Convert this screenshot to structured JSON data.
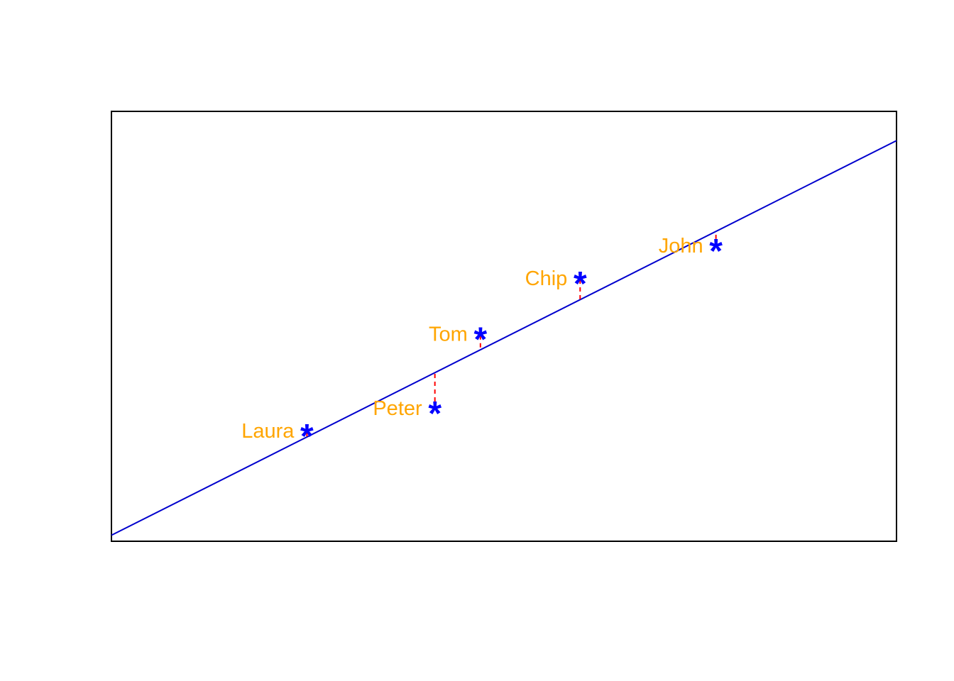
{
  "chart_data": {
    "type": "scatter",
    "title": "",
    "xlabel": "",
    "ylabel": "",
    "axes_shown": false,
    "grid": false,
    "legend": "none",
    "xlim": [
      0,
      100
    ],
    "ylim": [
      0,
      100
    ],
    "marker_symbol": "*",
    "points": [
      {
        "name": "Laura",
        "x": 24.9,
        "y": 25.4
      },
      {
        "name": "Peter",
        "x": 41.2,
        "y": 30.7
      },
      {
        "name": "Tom",
        "x": 47.0,
        "y": 47.9
      },
      {
        "name": "Chip",
        "x": 59.7,
        "y": 60.9
      },
      {
        "name": "John",
        "x": 77.0,
        "y": 68.5
      }
    ],
    "fit_line": {
      "intercept": 1.4,
      "slope": 0.918
    },
    "residuals_shown": true,
    "colors": {
      "points": "#0000ff",
      "labels": "#ffa500",
      "fit_line": "#0000cd",
      "residuals": "#ff0000",
      "frame": "#000000"
    }
  }
}
